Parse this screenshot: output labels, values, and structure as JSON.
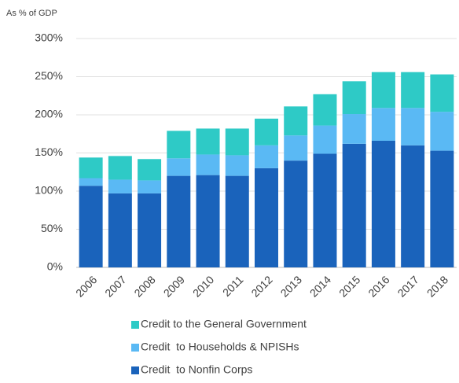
{
  "chart_data": {
    "type": "stacked_bar",
    "subtitle": "As % of GDP",
    "categories": [
      "2006",
      "2007",
      "2008",
      "2009",
      "2010",
      "2011",
      "2012",
      "2013",
      "2014",
      "2015",
      "2016",
      "2017",
      "2018"
    ],
    "series": [
      {
        "name": "Credit  to Nonfin Corps",
        "color": "#1a63bb",
        "values": [
          107,
          97,
          97,
          120,
          121,
          120,
          130,
          140,
          149,
          162,
          166,
          160,
          153
        ]
      },
      {
        "name": "Credit  to Households & NPISHs",
        "color": "#5ab9f4",
        "values": [
          10,
          18,
          17,
          23,
          27,
          27,
          30,
          33,
          37,
          39,
          43,
          49,
          51
        ]
      },
      {
        "name": "Credit to the General Government",
        "color": "#2ecac6",
        "values": [
          27,
          31,
          28,
          36,
          34,
          35,
          35,
          38,
          41,
          43,
          47,
          47,
          49
        ]
      }
    ],
    "ylim": [
      0,
      300
    ],
    "yticks": [
      {
        "value": 0,
        "label": "0%"
      },
      {
        "value": 50,
        "label": "50%"
      },
      {
        "value": 100,
        "label": "100%"
      },
      {
        "value": 150,
        "label": "150%"
      },
      {
        "value": 200,
        "label": "200%"
      },
      {
        "value": 250,
        "label": "250%"
      },
      {
        "value": 300,
        "label": "300%"
      }
    ],
    "grid": true
  }
}
